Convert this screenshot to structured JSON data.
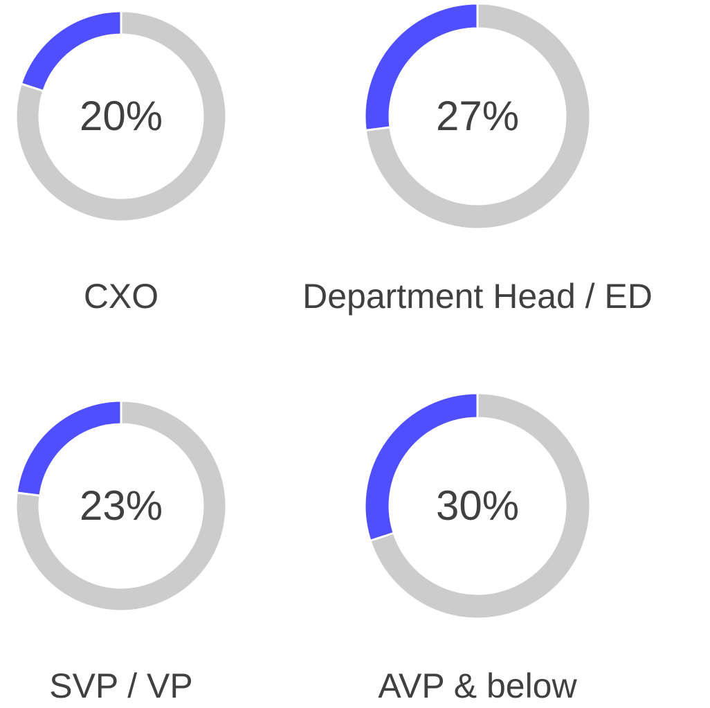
{
  "chart_data": [
    {
      "type": "donut",
      "title": "CXO",
      "values": [
        20,
        80
      ],
      "value_labels": [
        "20%",
        null
      ],
      "colors": [
        "#4f4fff",
        "#cccccc"
      ]
    },
    {
      "type": "donut",
      "title": "Department Head / ED",
      "values": [
        27,
        73
      ],
      "value_labels": [
        "27%",
        null
      ],
      "colors": [
        "#4f4fff",
        "#cccccc"
      ]
    },
    {
      "type": "donut",
      "title": "SVP / VP",
      "values": [
        23,
        77
      ],
      "value_labels": [
        "23%",
        null
      ],
      "colors": [
        "#4f4fff",
        "#cccccc"
      ]
    },
    {
      "type": "donut",
      "title": "AVP & below",
      "values": [
        30,
        70
      ],
      "value_labels": [
        "30%",
        null
      ],
      "colors": [
        "#4f4fff",
        "#cccccc"
      ]
    }
  ]
}
